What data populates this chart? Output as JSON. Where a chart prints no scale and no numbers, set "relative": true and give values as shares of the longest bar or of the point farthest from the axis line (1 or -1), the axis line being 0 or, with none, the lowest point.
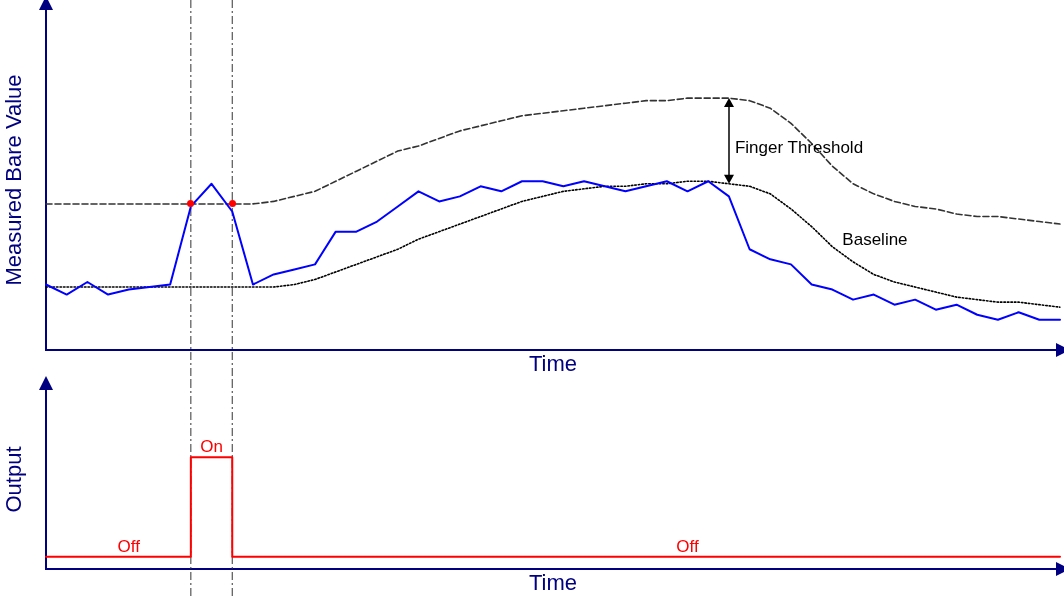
{
  "chart_data": [
    {
      "type": "line",
      "relative": true,
      "ylabel": "Measured Bare Value",
      "xlabel": "Time",
      "legend": false,
      "grid": false,
      "tick_labels": false,
      "categories": [
        null,
        null,
        null,
        null,
        null,
        null,
        null,
        null,
        null,
        null,
        null,
        null,
        null,
        null,
        null,
        null,
        null,
        null,
        null,
        null,
        null,
        null,
        null,
        null,
        null,
        null,
        null,
        null,
        null,
        null,
        null,
        null,
        null,
        null,
        null,
        null,
        null,
        null,
        null,
        null,
        null,
        null,
        null,
        null,
        null,
        null,
        null,
        null,
        null,
        null
      ],
      "series": [
        {
          "color": "#0000ff",
          "marker": "none",
          "line_style": "solid",
          "values": [
            0.26,
            0.22,
            0.27,
            0.22,
            0.24,
            0.25,
            0.26,
            0.57,
            0.66,
            0.55,
            0.26,
            0.3,
            0.32,
            0.34,
            0.47,
            0.47,
            0.51,
            0.57,
            0.63,
            0.59,
            0.61,
            0.65,
            0.63,
            0.67,
            0.67,
            0.65,
            0.67,
            0.65,
            0.63,
            0.65,
            0.67,
            0.63,
            0.67,
            0.61,
            0.4,
            0.36,
            0.34,
            0.26,
            0.24,
            0.2,
            0.22,
            0.18,
            0.2,
            0.16,
            0.18,
            0.14,
            0.12,
            0.15,
            0.12,
            0.12
          ]
        },
        {
          "name": "Finger Threshold",
          "color": "#333333",
          "marker": "none",
          "line_style": "dashed",
          "values": [
            0.58,
            0.58,
            0.58,
            0.58,
            0.58,
            0.58,
            0.58,
            0.58,
            0.58,
            0.58,
            0.58,
            0.59,
            0.61,
            0.63,
            0.67,
            0.71,
            0.75,
            0.79,
            0.81,
            0.84,
            0.87,
            0.89,
            0.91,
            0.93,
            0.94,
            0.95,
            0.96,
            0.97,
            0.98,
            0.99,
            0.99,
            1.0,
            1.0,
            1.0,
            0.99,
            0.96,
            0.9,
            0.82,
            0.73,
            0.66,
            0.62,
            0.59,
            0.57,
            0.56,
            0.54,
            0.53,
            0.53,
            0.52,
            0.51,
            0.5
          ]
        },
        {
          "name": "Baseline",
          "color": "#000000",
          "marker": "none",
          "line_style": "dotted",
          "values": [
            0.25,
            0.25,
            0.25,
            0.25,
            0.25,
            0.25,
            0.25,
            0.25,
            0.25,
            0.25,
            0.25,
            0.25,
            0.26,
            0.28,
            0.31,
            0.34,
            0.37,
            0.4,
            0.44,
            0.47,
            0.5,
            0.53,
            0.56,
            0.59,
            0.61,
            0.63,
            0.64,
            0.65,
            0.65,
            0.66,
            0.66,
            0.67,
            0.67,
            0.66,
            0.65,
            0.62,
            0.56,
            0.49,
            0.41,
            0.35,
            0.3,
            0.27,
            0.25,
            0.23,
            0.21,
            0.2,
            0.19,
            0.19,
            0.18,
            0.17
          ]
        }
      ]
    },
    {
      "type": "step",
      "relative": true,
      "ylabel": "Output",
      "xlabel": "Time",
      "legend": false,
      "grid": false,
      "tick_labels": false,
      "categories": [
        null,
        null,
        null,
        null,
        null,
        null,
        null,
        null,
        null,
        null,
        null,
        null,
        null,
        null,
        null,
        null,
        null,
        null,
        null,
        null,
        null,
        null,
        null,
        null,
        null,
        null,
        null,
        null,
        null,
        null,
        null,
        null,
        null,
        null,
        null,
        null,
        null,
        null,
        null,
        null,
        null,
        null,
        null,
        null,
        null,
        null,
        null,
        null,
        null,
        null
      ],
      "annotations": [
        "Off",
        "On",
        "Off"
      ],
      "series": [
        {
          "color": "#ff0000",
          "marker": "none",
          "line_style": "solid",
          "values": [
            0.11,
            0.11,
            0.11,
            0.11,
            0.11,
            0.11,
            0.11,
            1,
            1,
            0.11,
            0.11,
            0.11,
            0.11,
            0.11,
            0.11,
            0.11,
            0.11,
            0.11,
            0.11,
            0.11,
            0.11,
            0.11,
            0.11,
            0.11,
            0.11,
            0.11,
            0.11,
            0.11,
            0.11,
            0.11,
            0.11,
            0.11,
            0.11,
            0.11,
            0.11,
            0.11,
            0.11,
            0.11,
            0.11,
            0.11,
            0.11,
            0.11,
            0.11,
            0.11,
            0.11,
            0.11,
            0.11,
            0.11,
            0.11,
            0.11
          ]
        }
      ]
    }
  ]
}
